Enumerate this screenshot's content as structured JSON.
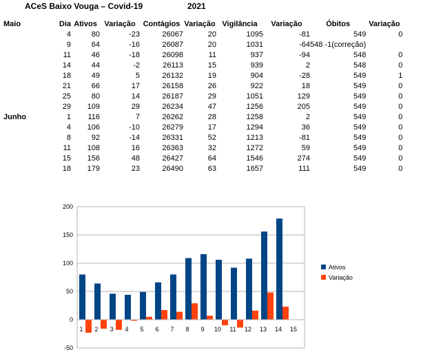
{
  "title": "ACeS Baixo Vouga –  Covid-19",
  "year": "2021",
  "headers": [
    "Maio",
    "Dia",
    "Ativos",
    "Variação",
    "Contágios",
    "Variação",
    "Vigilância",
    "Variação",
    "Óbitos",
    "Variação"
  ],
  "rows": [
    {
      "month": "",
      "c": [
        "4",
        "80",
        "-23",
        "26067",
        "20",
        "1095",
        "-81",
        "549",
        "0"
      ]
    },
    {
      "month": "",
      "c": [
        "9",
        "64",
        "-16",
        "26087",
        "20",
        "1031",
        "-64",
        "548 -1(correção)",
        ""
      ]
    },
    {
      "month": "",
      "c": [
        "11",
        "46",
        "-18",
        "26098",
        "11",
        "937",
        "-94",
        "548",
        "0"
      ]
    },
    {
      "month": "",
      "c": [
        "14",
        "44",
        "-2",
        "26113",
        "15",
        "939",
        "2",
        "548",
        "0"
      ]
    },
    {
      "month": "",
      "c": [
        "18",
        "49",
        "5",
        "26132",
        "19",
        "904",
        "-28",
        "549",
        "1"
      ]
    },
    {
      "month": "",
      "c": [
        "21",
        "66",
        "17",
        "26158",
        "26",
        "922",
        "18",
        "549",
        "0"
      ]
    },
    {
      "month": "",
      "c": [
        "25",
        "80",
        "14",
        "26187",
        "29",
        "1051",
        "129",
        "549",
        "0"
      ]
    },
    {
      "month": "",
      "c": [
        "29",
        "109",
        "29",
        "26234",
        "47",
        "1256",
        "205",
        "549",
        "0"
      ]
    },
    {
      "month": "Junho",
      "c": [
        "1",
        "116",
        "7",
        "26262",
        "28",
        "1258",
        "2",
        "549",
        "0"
      ]
    },
    {
      "month": "",
      "c": [
        "4",
        "106",
        "-10",
        "26279",
        "17",
        "1294",
        "36",
        "549",
        "0"
      ]
    },
    {
      "month": "",
      "c": [
        "8",
        "92",
        "-14",
        "26331",
        "52",
        "1213",
        "-81",
        "549",
        "0"
      ]
    },
    {
      "month": "",
      "c": [
        "11",
        "108",
        "16",
        "26363",
        "32",
        "1272",
        "59",
        "549",
        "0"
      ]
    },
    {
      "month": "",
      "c": [
        "15",
        "156",
        "48",
        "26427",
        "64",
        "1546",
        "274",
        "549",
        "0"
      ]
    },
    {
      "month": "",
      "c": [
        "18",
        "179",
        "23",
        "26490",
        "63",
        "1657",
        "111",
        "549",
        "0"
      ]
    }
  ],
  "chart_data": {
    "type": "bar",
    "categories": [
      "1",
      "2",
      "3",
      "4",
      "5",
      "6",
      "7",
      "8",
      "9",
      "10",
      "11",
      "12",
      "13",
      "14",
      "15"
    ],
    "series": [
      {
        "name": "Ativos",
        "color": "#004586",
        "values": [
          80,
          64,
          46,
          44,
          49,
          66,
          80,
          109,
          116,
          106,
          92,
          108,
          156,
          179,
          null
        ]
      },
      {
        "name": "Variação",
        "color": "#ff420e",
        "values": [
          -23,
          -16,
          -18,
          -2,
          5,
          17,
          14,
          29,
          7,
          -10,
          -14,
          16,
          48,
          23,
          null
        ]
      }
    ],
    "ylim": [
      -50,
      200
    ],
    "yticks": [
      "200",
      "150",
      "100",
      "50",
      "0",
      "-50"
    ],
    "grid": true,
    "legend": "right"
  }
}
